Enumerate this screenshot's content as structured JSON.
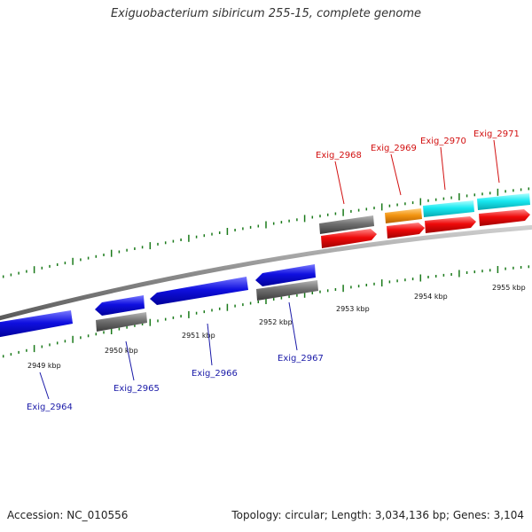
{
  "title": "Exiguobacterium sibiricum 255-15, complete genome",
  "footer": {
    "accession": "Accession: NC_010556",
    "topology": "Topology: circular; Length: 3,034,136 bp; Genes: 3,104"
  },
  "colors": {
    "backbone": "#8c8c8c",
    "ticks": "#1a7a1a",
    "blue_gene": "#1010e0",
    "gray_gene": "#707070",
    "red_gene": "#ee0a0a",
    "orange_gene": "#f39512",
    "cyan_gene": "#18e8f0",
    "label_blue": "#1a1aa8",
    "label_red": "#d21010"
  },
  "kbp_labels": [
    "2949 kbp",
    "2950 kbp",
    "2951 kbp",
    "2952 kbp",
    "2953 kbp",
    "2954 kbp",
    "2955 kbp"
  ],
  "genes": [
    {
      "id": "Exig_2964",
      "label_color": "blue"
    },
    {
      "id": "Exig_2965",
      "label_color": "blue"
    },
    {
      "id": "Exig_2966",
      "label_color": "blue"
    },
    {
      "id": "Exig_2967",
      "label_color": "blue"
    },
    {
      "id": "Exig_2968",
      "label_color": "red"
    },
    {
      "id": "Exig_2969",
      "label_color": "red"
    },
    {
      "id": "Exig_2970",
      "label_color": "red"
    },
    {
      "id": "Exig_2971",
      "label_color": "red"
    }
  ]
}
